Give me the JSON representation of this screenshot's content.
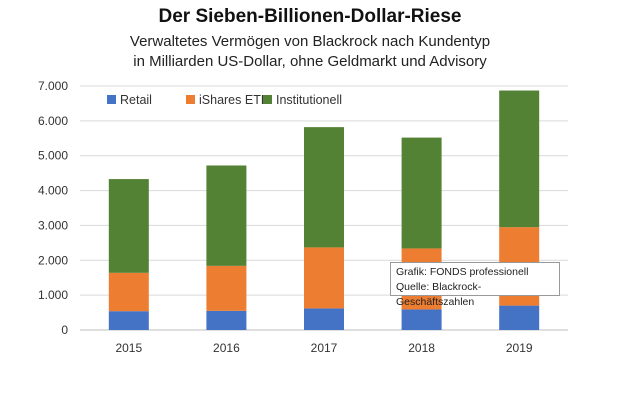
{
  "title": "Der Sieben-Billionen-Dollar-Riese",
  "subtitle_line1": "Verwaltetes Vermögen von Blackrock nach Kundentyp",
  "subtitle_line2": "in Milliarden US-Dollar, ohne Geldmarkt und Advisory",
  "source_line1": "Grafik: FONDS professionell",
  "source_line2": "Quelle: Blackrock-Geschäftszahlen",
  "colors": {
    "Retail": "#4472c4",
    "iShares ETF": "#ed7d31",
    "Institutionell": "#548235"
  },
  "chart_data": {
    "type": "bar",
    "stacked": true,
    "categories": [
      "2015",
      "2016",
      "2017",
      "2018",
      "2019"
    ],
    "series": [
      {
        "name": "Retail",
        "values": [
          540,
          550,
          620,
          590,
          700
        ]
      },
      {
        "name": "iShares ETF",
        "values": [
          1100,
          1290,
          1750,
          1750,
          2250
        ]
      },
      {
        "name": "Institutionell",
        "values": [
          2690,
          2880,
          3450,
          3180,
          3920
        ]
      }
    ],
    "ylim": [
      0,
      7000
    ],
    "yticks": [
      "0",
      "1.000",
      "2.000",
      "3.000",
      "4.000",
      "5.000",
      "6.000",
      "7.000"
    ],
    "grid": true,
    "legend": "top-left"
  }
}
